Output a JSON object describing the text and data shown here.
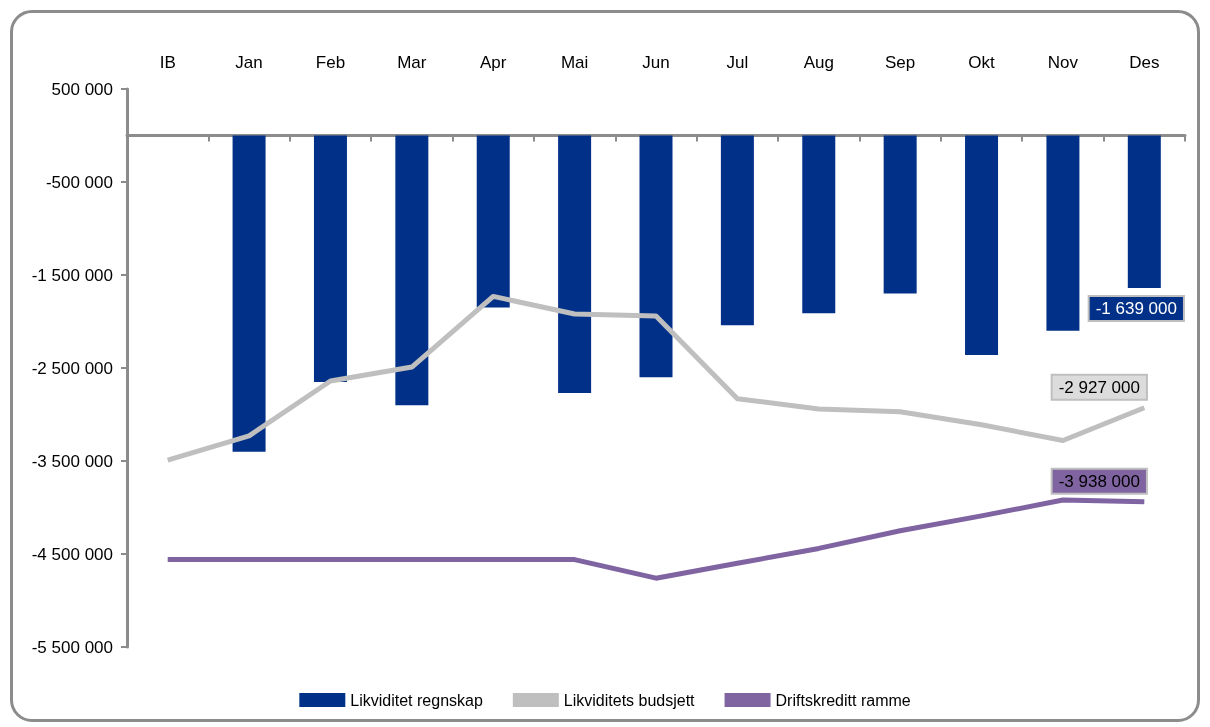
{
  "chart_data": {
    "type": "bar",
    "categories": [
      "IB",
      "Jan",
      "Feb",
      "Mar",
      "Apr",
      "Mai",
      "Jun",
      "Jul",
      "Aug",
      "Sep",
      "Okt",
      "Nov",
      "Des"
    ],
    "series": [
      {
        "name": "Likviditet regnskap",
        "color": "#003087",
        "values": [
          null,
          -3400000,
          -2650000,
          -2900000,
          -1850000,
          -2770000,
          -2600000,
          -2040000,
          -1910000,
          -1700000,
          -2360000,
          -2100000,
          -1639000
        ],
        "value_labels": [
          null,
          null,
          null,
          null,
          null,
          null,
          null,
          null,
          null,
          null,
          null,
          null,
          "-1 639 000"
        ]
      },
      {
        "name": "Likviditets budsjett",
        "type": "line",
        "color": "#bfbfbf",
        "values": [
          -3490000,
          -3230000,
          -2640000,
          -2490000,
          -1730000,
          -1920000,
          -1940000,
          -2830000,
          -2940000,
          -2970000,
          -3110000,
          -3280000,
          -2927000
        ],
        "value_labels": [
          null,
          null,
          null,
          null,
          null,
          null,
          null,
          null,
          null,
          null,
          null,
          null,
          "-2 927 000"
        ]
      },
      {
        "name": "Driftskreditt ramme",
        "type": "line",
        "color": "#8064a2",
        "values": [
          -4560000,
          -4560000,
          -4560000,
          -4560000,
          -4560000,
          -4560000,
          -4760000,
          -4600000,
          -4440000,
          -4250000,
          -4090000,
          -3920000,
          -3938000
        ],
        "value_labels": [
          null,
          null,
          null,
          null,
          null,
          null,
          null,
          null,
          null,
          null,
          null,
          null,
          "-3 938 000"
        ]
      }
    ],
    "ylim": [
      -5500000,
      500000
    ],
    "yticks": [
      {
        "value": 500000,
        "label": "500 000"
      },
      {
        "value": -500000,
        "label": "-500 000"
      },
      {
        "value": -1500000,
        "label": "-1 500 000"
      },
      {
        "value": -2500000,
        "label": "-2 500 000"
      },
      {
        "value": -3500000,
        "label": "-3 500 000"
      },
      {
        "value": -4500000,
        "label": "-4 500 000"
      },
      {
        "value": -5500000,
        "label": "-5 500 000"
      }
    ],
    "grid": false,
    "legend": "bottom",
    "marker": "none",
    "line_style": "solid"
  }
}
